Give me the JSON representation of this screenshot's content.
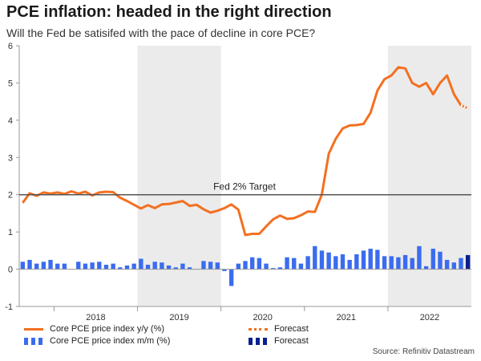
{
  "header": {
    "title": "PCE inflation: headed in the right direction",
    "subtitle": "Will the Fed be satisifed with the pace of decline in core PCE?"
  },
  "source": "Source: Refinitiv Datastream",
  "legend": {
    "items": [
      {
        "label": "Core PCE price index y/y (%)"
      },
      {
        "label": "Forecast"
      },
      {
        "label": "Core PCE price index m/m (%)"
      },
      {
        "label": "Forecast"
      }
    ]
  },
  "colors": {
    "line": "#f37021",
    "bars": "#3b6cf0",
    "forecast_bar": "#0b1f8f",
    "shade": "#ebebeb",
    "target": "#555555"
  },
  "chart_data": {
    "type": "line",
    "title": "PCE inflation: headed in the right direction",
    "subtitle": "Will the Fed be satisifed with the pace of decline in core PCE?",
    "ylim": [
      -1,
      6
    ],
    "yticks": [
      -1,
      0,
      1,
      2,
      3,
      4,
      5,
      6
    ],
    "x_year_labels": [
      "2018",
      "2019",
      "2020",
      "2021",
      "2022"
    ],
    "grid": false,
    "shaded_years": [
      "2019",
      "2022"
    ],
    "start": "2017-08",
    "end": "2022-12",
    "target": {
      "value": 2,
      "label": "Fed 2% Target"
    },
    "series": [
      {
        "name": "Core PCE price index y/y (%)",
        "type": "line",
        "values": [
          1.78,
          2.04,
          1.97,
          2.06,
          2.03,
          2.06,
          2.02,
          2.09,
          2.03,
          2.08,
          1.98,
          2.06,
          2.08,
          2.07,
          1.92,
          1.83,
          1.73,
          1.63,
          1.72,
          1.64,
          1.74,
          1.75,
          1.79,
          1.83,
          1.7,
          1.73,
          1.61,
          1.52,
          1.57,
          1.64,
          1.74,
          1.6,
          0.92,
          0.95,
          0.95,
          1.15,
          1.34,
          1.44,
          1.35,
          1.37,
          1.45,
          1.55,
          1.54,
          2.0,
          3.1,
          3.5,
          3.78,
          3.86,
          3.87,
          3.9,
          4.2,
          4.8,
          5.1,
          5.2,
          5.42,
          5.39,
          5.0,
          4.9,
          5.0,
          4.7,
          5.0,
          5.2,
          4.7,
          4.4,
          4.32
        ]
      },
      {
        "name": "Core PCE price index m/m (%)",
        "type": "bar",
        "values": [
          0.2,
          0.25,
          0.15,
          0.2,
          0.25,
          0.15,
          0.15,
          0.0,
          0.2,
          0.15,
          0.18,
          0.2,
          0.12,
          0.15,
          0.05,
          0.1,
          0.15,
          0.28,
          0.12,
          0.2,
          0.18,
          0.1,
          0.05,
          0.15,
          0.05,
          0.0,
          0.22,
          0.2,
          0.18,
          -0.05,
          -0.45,
          0.15,
          0.22,
          0.32,
          0.3,
          0.15,
          0.03,
          0.05,
          0.32,
          0.3,
          0.15,
          0.35,
          0.62,
          0.5,
          0.45,
          0.35,
          0.4,
          0.25,
          0.4,
          0.5,
          0.55,
          0.52,
          0.35,
          0.35,
          0.32,
          0.38,
          0.3,
          0.62,
          0.08,
          0.55,
          0.47,
          0.25,
          0.18,
          0.3,
          0.38
        ]
      }
    ],
    "forecast": {
      "line_last_value": 4.32,
      "bar_last_value": 0.38
    }
  }
}
